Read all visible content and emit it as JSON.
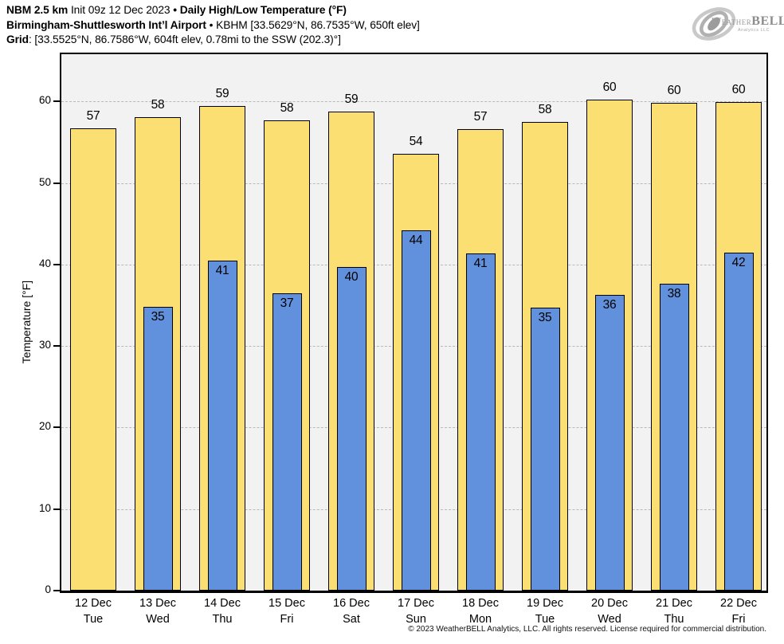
{
  "header": {
    "line1": {
      "model": "NBM 2.5 km",
      "init": " Init 09z 12 Dec 2023 ",
      "bullet": "•",
      "product": " Daily High/Low Temperature (°F)"
    },
    "line2": {
      "station": "Birmingham-Shuttlesworth Int’l Airport",
      "bullet": " • ",
      "station_info": "KBHM [33.5629°N, 86.7535°W, 650ft elev]"
    },
    "line3": {
      "label": "Grid",
      "value": ": [33.5525°N, 86.7586°W, 604ft elev, 0.78mi to the SSW (202.3)°]"
    }
  },
  "logo": {
    "text_weather": "Weather",
    "text_bell": "BELL",
    "text_sub": "Analytics LLC"
  },
  "footer": "© 2023 WeatherBELL Analytics, LLC. All rights reserved. License required for commercial distribution.",
  "chart_data": {
    "type": "bar",
    "title": "Daily High/Low Temperature (°F)",
    "ylabel": "Temperature [°F]",
    "ylim": [
      0,
      65.8
    ],
    "yticks": [
      0,
      10,
      20,
      30,
      40,
      50,
      60
    ],
    "grid": {
      "horizontal": true,
      "style": "dash-dot",
      "color": "#b9b9b9"
    },
    "plot_bg": "#f2f2f2",
    "categories": [
      {
        "date": "12 Dec",
        "day": "Tue"
      },
      {
        "date": "13 Dec",
        "day": "Wed"
      },
      {
        "date": "14 Dec",
        "day": "Thu"
      },
      {
        "date": "15 Dec",
        "day": "Fri"
      },
      {
        "date": "16 Dec",
        "day": "Sat"
      },
      {
        "date": "17 Dec",
        "day": "Sun"
      },
      {
        "date": "18 Dec",
        "day": "Mon"
      },
      {
        "date": "19 Dec",
        "day": "Tue"
      },
      {
        "date": "20 Dec",
        "day": "Wed"
      },
      {
        "date": "21 Dec",
        "day": "Thu"
      },
      {
        "date": "22 Dec",
        "day": "Fri"
      }
    ],
    "series": [
      {
        "name": "High",
        "color": "#fcdf73",
        "border": "#000000",
        "labels": [
          57,
          58,
          59,
          58,
          59,
          54,
          57,
          58,
          60,
          60,
          60
        ],
        "values": [
          56.7,
          58.1,
          59.4,
          57.7,
          58.8,
          53.6,
          56.6,
          57.5,
          60.2,
          59.8,
          59.9
        ]
      },
      {
        "name": "Low",
        "color": "#6190dc",
        "border": "#000000",
        "labels": [
          null,
          35,
          41,
          37,
          40,
          44,
          41,
          35,
          36,
          38,
          42
        ],
        "values": [
          null,
          34.8,
          40.5,
          36.5,
          39.7,
          44.2,
          41.4,
          34.7,
          36.3,
          37.6,
          41.5
        ]
      }
    ]
  }
}
